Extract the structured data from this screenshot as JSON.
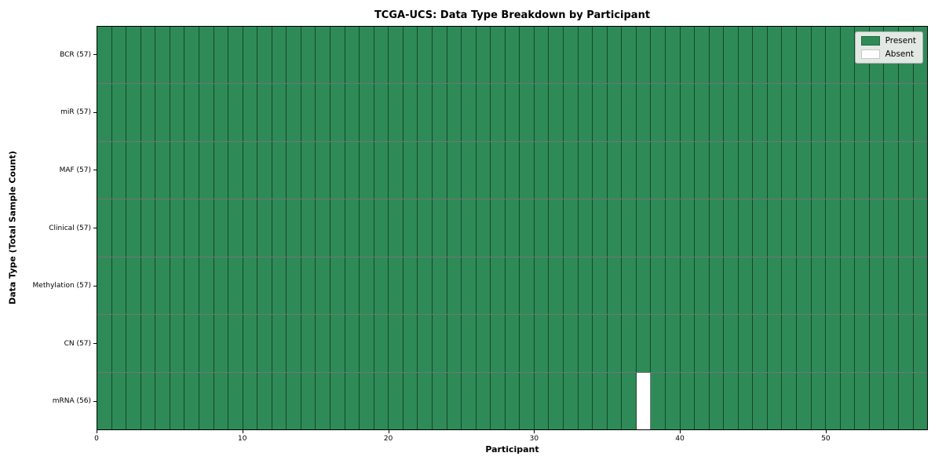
{
  "chart_data": {
    "type": "heatmap",
    "title": "TCGA-UCS: Data Type Breakdown by Participant",
    "xlabel": "Participant",
    "ylabel": "Data Type (Total Sample Count)",
    "n_participants": 57,
    "x_ticks": [
      0,
      10,
      20,
      30,
      40,
      50
    ],
    "x_range": [
      0,
      57
    ],
    "grid": true,
    "rows": [
      {
        "data_type": "BCR",
        "label": "BCR (57)",
        "total_samples": 57,
        "absent_participants": []
      },
      {
        "data_type": "miR",
        "label": "miR (57)",
        "total_samples": 57,
        "absent_participants": []
      },
      {
        "data_type": "MAF",
        "label": "MAF (57)",
        "total_samples": 57,
        "absent_participants": []
      },
      {
        "data_type": "Clinical",
        "label": "Clinical (57)",
        "total_samples": 57,
        "absent_participants": []
      },
      {
        "data_type": "Methylation",
        "label": "Methylation (57)",
        "total_samples": 57,
        "absent_participants": []
      },
      {
        "data_type": "CN",
        "label": "CN (57)",
        "total_samples": 57,
        "absent_participants": []
      },
      {
        "data_type": "mRNA",
        "label": "mRNA (56)",
        "total_samples": 56,
        "absent_participants": [
          37
        ]
      }
    ],
    "legend": {
      "position": "upper-right",
      "entries": [
        {
          "label": "Present",
          "color": "#2e8b57"
        },
        {
          "label": "Absent",
          "color": "#ffffff"
        }
      ]
    },
    "colors": {
      "present": "#2e8b57",
      "absent": "#ffffff",
      "grid_line": "rgba(0,0,0,0.5)"
    }
  }
}
